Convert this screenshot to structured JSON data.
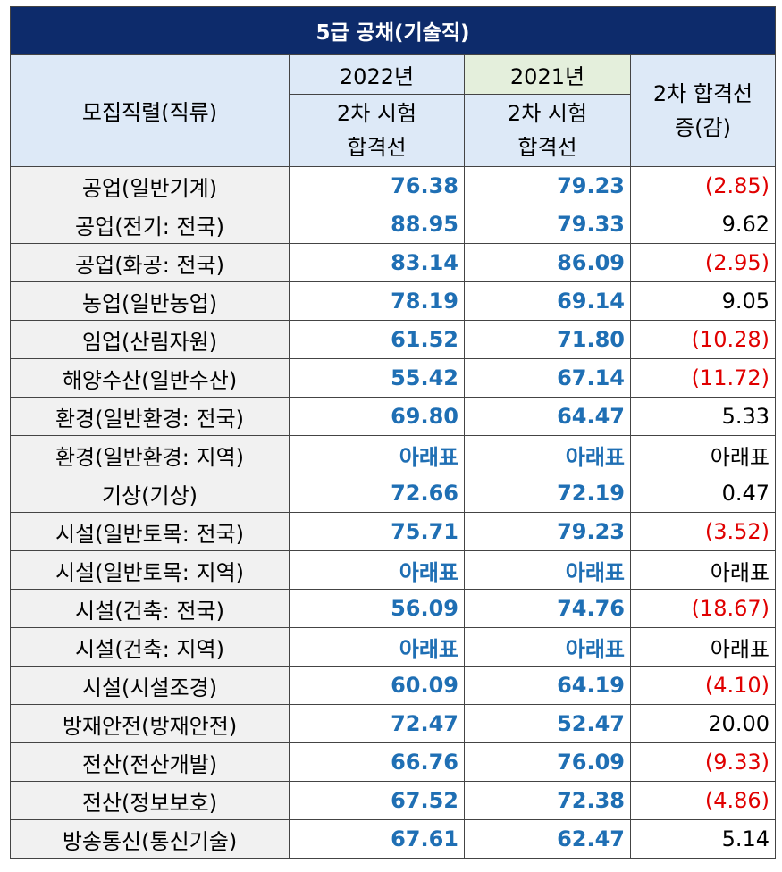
{
  "title": "5급 공채(기술직)",
  "headers": {
    "category": "모집직렬(직류)",
    "year_a": "2022년",
    "year_b": "2021년",
    "sub_a": "2차 시험\n합격선",
    "sub_b": "2차 시험\n합격선",
    "diff": "2차 합격선\n증(감)"
  },
  "colors": {
    "title_bg": "#0d2b6b",
    "header_bg": "#dde9f7",
    "header_green_bg": "#e4efdc",
    "value_blue": "#1f6fb4",
    "negative_red": "#e00000",
    "positive_black": "#000000"
  },
  "rows": [
    {
      "name": "공업(일반기계)",
      "v2022": "76.38",
      "v2021": "79.23",
      "diff": "(2.85)",
      "neg": true
    },
    {
      "name": "공업(전기: 전국)",
      "v2022": "88.95",
      "v2021": "79.33",
      "diff": "9.62",
      "neg": false
    },
    {
      "name": "공업(화공: 전국)",
      "v2022": "83.14",
      "v2021": "86.09",
      "diff": "(2.95)",
      "neg": true
    },
    {
      "name": "농업(일반농업)",
      "v2022": "78.19",
      "v2021": "69.14",
      "diff": "9.05",
      "neg": false
    },
    {
      "name": "임업(산림자원)",
      "v2022": "61.52",
      "v2021": "71.80",
      "diff": "(10.28)",
      "neg": true
    },
    {
      "name": "해양수산(일반수산)",
      "v2022": "55.42",
      "v2021": "67.14",
      "diff": "(11.72)",
      "neg": true
    },
    {
      "name": "환경(일반환경: 전국)",
      "v2022": "69.80",
      "v2021": "64.47",
      "diff": "5.33",
      "neg": false
    },
    {
      "name": "환경(일반환경: 지역)",
      "v2022": "아래표",
      "v2021": "아래표",
      "diff": "아래표",
      "neg": false
    },
    {
      "name": "기상(기상)",
      "v2022": "72.66",
      "v2021": "72.19",
      "diff": "0.47",
      "neg": false
    },
    {
      "name": "시설(일반토목: 전국)",
      "v2022": "75.71",
      "v2021": "79.23",
      "diff": "(3.52)",
      "neg": true
    },
    {
      "name": "시설(일반토목: 지역)",
      "v2022": "아래표",
      "v2021": "아래표",
      "diff": "아래표",
      "neg": false
    },
    {
      "name": "시설(건축: 전국)",
      "v2022": "56.09",
      "v2021": "74.76",
      "diff": "(18.67)",
      "neg": true
    },
    {
      "name": "시설(건축: 지역)",
      "v2022": "아래표",
      "v2021": "아래표",
      "diff": "아래표",
      "neg": false
    },
    {
      "name": "시설(시설조경)",
      "v2022": "60.09",
      "v2021": "64.19",
      "diff": "(4.10)",
      "neg": true
    },
    {
      "name": "방재안전(방재안전)",
      "v2022": "72.47",
      "v2021": "52.47",
      "diff": "20.00",
      "neg": false
    },
    {
      "name": "전산(전산개발)",
      "v2022": "66.76",
      "v2021": "76.09",
      "diff": "(9.33)",
      "neg": true
    },
    {
      "name": "전산(정보보호)",
      "v2022": "67.52",
      "v2021": "72.38",
      "diff": "(4.86)",
      "neg": true
    },
    {
      "name": "방송통신(통신기술)",
      "v2022": "67.61",
      "v2021": "62.47",
      "diff": "5.14",
      "neg": false
    }
  ]
}
